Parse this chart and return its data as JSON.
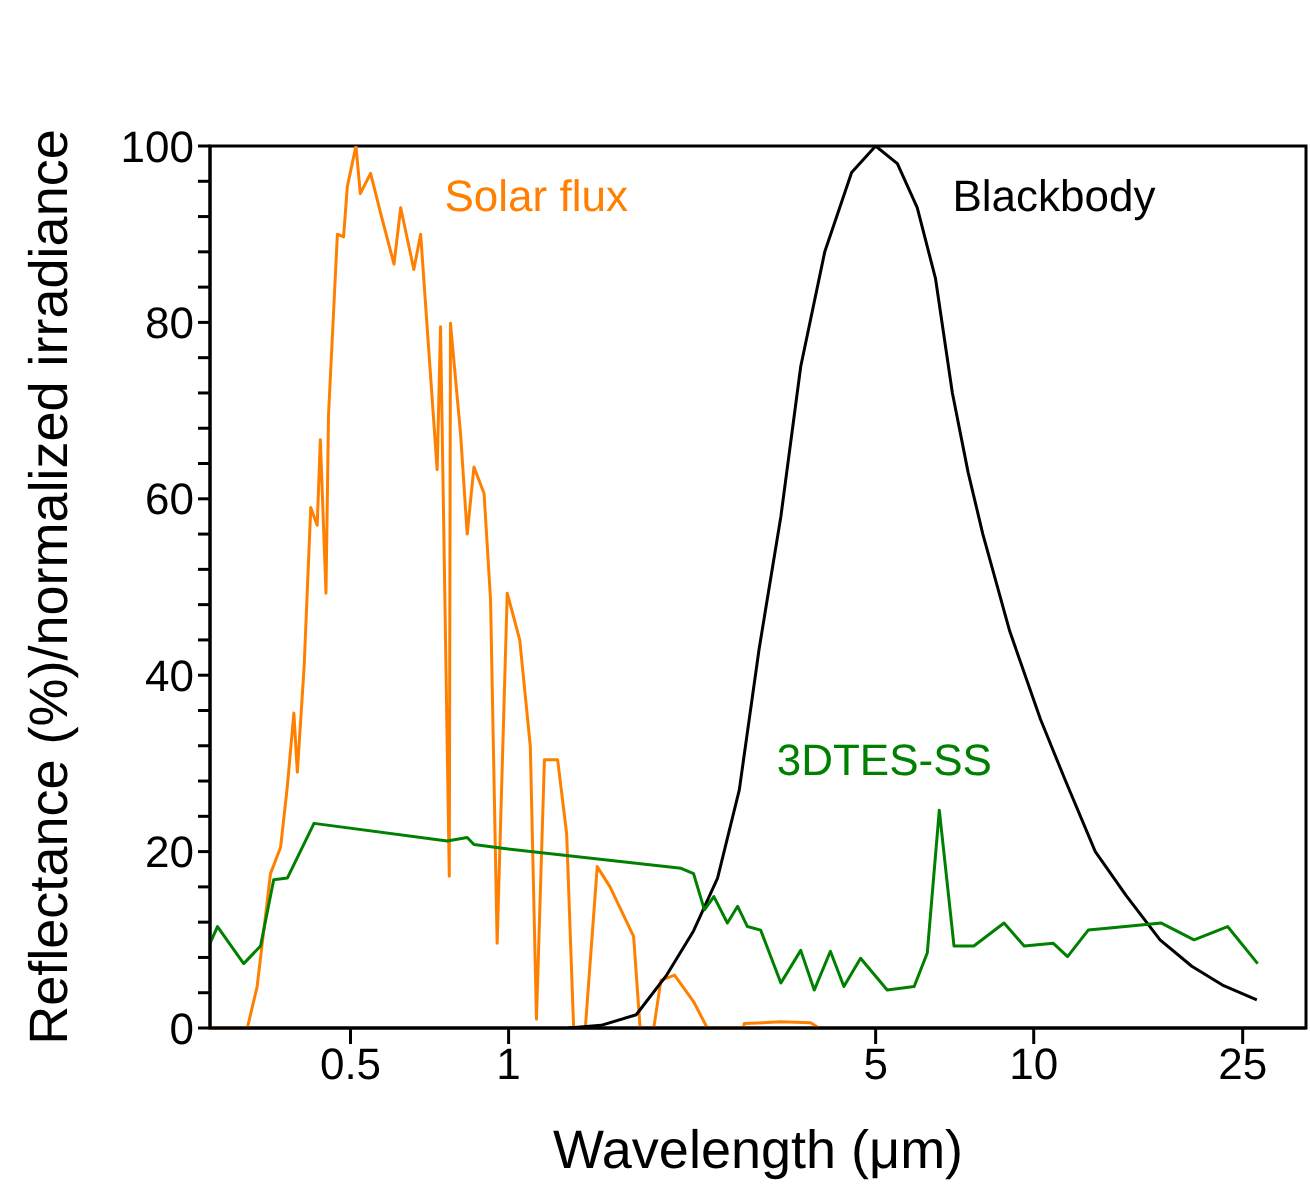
{
  "chart_data": {
    "type": "line",
    "xlabel": "Wavelength (μm)",
    "ylabel": "Reflectance (%)/normalized irradiance",
    "log": "x",
    "xlim": [
      0.27,
      33
    ],
    "xticks": [
      0.5,
      1,
      5,
      10,
      25
    ],
    "ylim": [
      0,
      100
    ],
    "yticks": [
      0,
      {
        "value": 4,
        "label": null
      },
      {
        "value": 8,
        "label": null
      },
      {
        "value": 12,
        "label": null
      },
      {
        "value": 16,
        "label": null
      },
      20,
      {
        "value": 24,
        "label": null
      },
      {
        "value": 28,
        "label": null
      },
      {
        "value": 32,
        "label": null
      },
      {
        "value": 36,
        "label": null
      },
      40,
      {
        "value": 44,
        "label": null
      },
      {
        "value": 48,
        "label": null
      },
      {
        "value": 52,
        "label": null
      },
      {
        "value": 56,
        "label": null
      },
      60,
      {
        "value": 64,
        "label": null
      },
      {
        "value": 68,
        "label": null
      },
      {
        "value": 72,
        "label": null
      },
      {
        "value": 76,
        "label": null
      },
      80,
      {
        "value": 84,
        "label": null
      },
      {
        "value": 88,
        "label": null
      },
      {
        "value": 92,
        "label": null
      },
      {
        "value": 96,
        "label": null
      },
      100
    ],
    "grid": false,
    "legend": false,
    "marker": "none",
    "line_style": "solid",
    "series": [
      {
        "name": "Solar flux",
        "color": "#ff8000",
        "x": [
          0.27,
          0.318,
          0.332,
          0.352,
          0.368,
          0.379,
          0.39,
          0.396,
          0.408,
          0.42,
          0.432,
          0.438,
          0.449,
          0.454,
          0.472,
          0.485,
          0.493,
          0.512,
          0.522,
          0.546,
          0.571,
          0.605,
          0.623,
          0.66,
          0.68,
          0.731,
          0.742,
          0.771,
          0.775,
          0.81,
          0.834,
          0.859,
          0.898,
          0.924,
          0.951,
          0.994,
          1.05,
          1.1,
          1.13,
          1.17,
          1.24,
          1.29,
          1.33,
          1.4,
          1.475,
          1.56,
          1.73,
          1.78,
          1.89,
          1.95,
          2.07,
          2.25,
          2.39,
          2.8,
          2.81,
          3.3,
          3.76,
          3.9
        ],
        "values": [
          0,
          0,
          4.7,
          17.5,
          20.5,
          27.4,
          35.7,
          29,
          41,
          59,
          57,
          66.7,
          49.3,
          69.5,
          90,
          89.7,
          95.4,
          100,
          94.6,
          96.9,
          92.3,
          86.6,
          93,
          86,
          90,
          63.3,
          79.5,
          17.2,
          79.9,
          67.4,
          56,
          63.6,
          60.6,
          48.5,
          9.6,
          49.3,
          44,
          31.9,
          1,
          30.4,
          30.4,
          22,
          0,
          0,
          18.3,
          16,
          10.4,
          0,
          0,
          5.4,
          6,
          3,
          0,
          0,
          0.5,
          0.7,
          0.6,
          0
        ]
      },
      {
        "name": "Blackbody",
        "color": "#000000",
        "x": [
          1.3,
          1.5,
          1.75,
          2,
          2.25,
          2.5,
          2.75,
          3,
          3.3,
          3.6,
          4,
          4.5,
          5,
          5.5,
          6,
          6.5,
          7,
          7.5,
          8,
          9,
          10.3,
          11.5,
          13.1,
          15,
          17.4,
          20,
          23,
          26.6
        ],
        "values": [
          0,
          0.3,
          1.5,
          6,
          11,
          17,
          27,
          43,
          58,
          75,
          88,
          97,
          100,
          98,
          93,
          85,
          72,
          63,
          56,
          45,
          35,
          28,
          20,
          15,
          10,
          7,
          4.8,
          3.2
        ]
      },
      {
        "name": "3DTES-SS",
        "color": "#008000",
        "x": [
          0.27,
          0.279,
          0.313,
          0.337,
          0.357,
          0.379,
          0.426,
          0.764,
          0.834,
          0.859,
          0.965,
          2.13,
          2.25,
          2.36,
          2.46,
          2.61,
          2.73,
          2.85,
          3.02,
          3.3,
          3.6,
          3.82,
          4.1,
          4.35,
          4.68,
          5.26,
          5.92,
          6.27,
          6.61,
          7.05,
          7.69,
          8.78,
          9.59,
          10.9,
          11.6,
          12.7,
          13.8,
          17.5,
          20.2,
          23.4,
          26.7
        ],
        "values": [
          9.6,
          11.5,
          7.3,
          9.3,
          16.8,
          17,
          23.2,
          21.2,
          21.6,
          20.8,
          20.4,
          18.1,
          17.5,
          13.4,
          14.9,
          11.9,
          13.8,
          11.5,
          11.1,
          5.1,
          8.8,
          4.3,
          8.7,
          4.7,
          7.9,
          4.3,
          4.7,
          8.5,
          24.7,
          9.3,
          9.3,
          11.9,
          9.3,
          9.6,
          8.1,
          11.1,
          11.3,
          11.9,
          10,
          11.5,
          7.3
        ]
      }
    ]
  }
}
